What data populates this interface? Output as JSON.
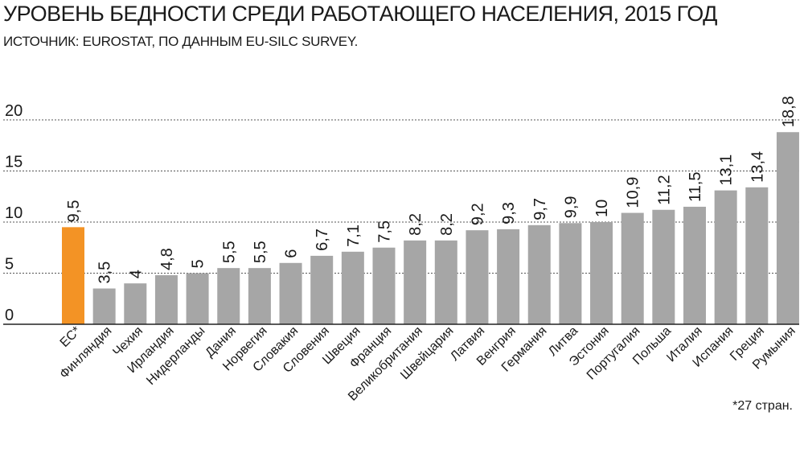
{
  "chart_data": {
    "type": "bar",
    "title": "УРОВЕНЬ БЕДНОСТИ СРЕДИ РАБОТАЮЩЕГО НАСЕЛЕНИЯ, 2015 ГОД",
    "subtitle": "ИСТОЧНИК: EUROSTAT, ПО ДАННЫМ EU-SILC SURVEY.",
    "xlabel": "",
    "ylabel": "",
    "ylim": [
      0,
      20
    ],
    "yticks": [
      "0",
      "5",
      "10",
      "15",
      "20"
    ],
    "grid": true,
    "categories": [
      "ЕС*",
      "Финляндия",
      "Чехия",
      "Ирландия",
      "Нидерланды",
      "Дания",
      "Норвегия",
      "Словакия",
      "Словения",
      "Швеция",
      "Франция",
      "Великобритания",
      "Швейцария",
      "Латвия",
      "Венгрия",
      "Германия",
      "Литва",
      "Эстония",
      "Португалия",
      "Польша",
      "Италия",
      "Испания",
      "Греция",
      "Румыния"
    ],
    "values": [
      9.5,
      3.5,
      4,
      4.8,
      5,
      5.5,
      5.5,
      6,
      6.7,
      7.1,
      7.5,
      8.2,
      8.2,
      9.2,
      9.3,
      9.7,
      9.9,
      10,
      10.9,
      11.2,
      11.5,
      13.1,
      13.4,
      18.8
    ],
    "value_labels": [
      "9,5",
      "3,5",
      "4",
      "4,8",
      "5",
      "5,5",
      "5,5",
      "6",
      "6,7",
      "7,1",
      "7,5",
      "8,2",
      "8,2",
      "9,2",
      "9,3",
      "9,7",
      "9,9",
      "10",
      "10,9",
      "11,2",
      "11,5",
      "13,1",
      "13,4",
      "18,8"
    ],
    "highlight_index": 0,
    "colors": {
      "bar": "#a6a6a6",
      "highlight": "#f39325",
      "grid": "#555555"
    },
    "footnote": "*27 стран."
  }
}
